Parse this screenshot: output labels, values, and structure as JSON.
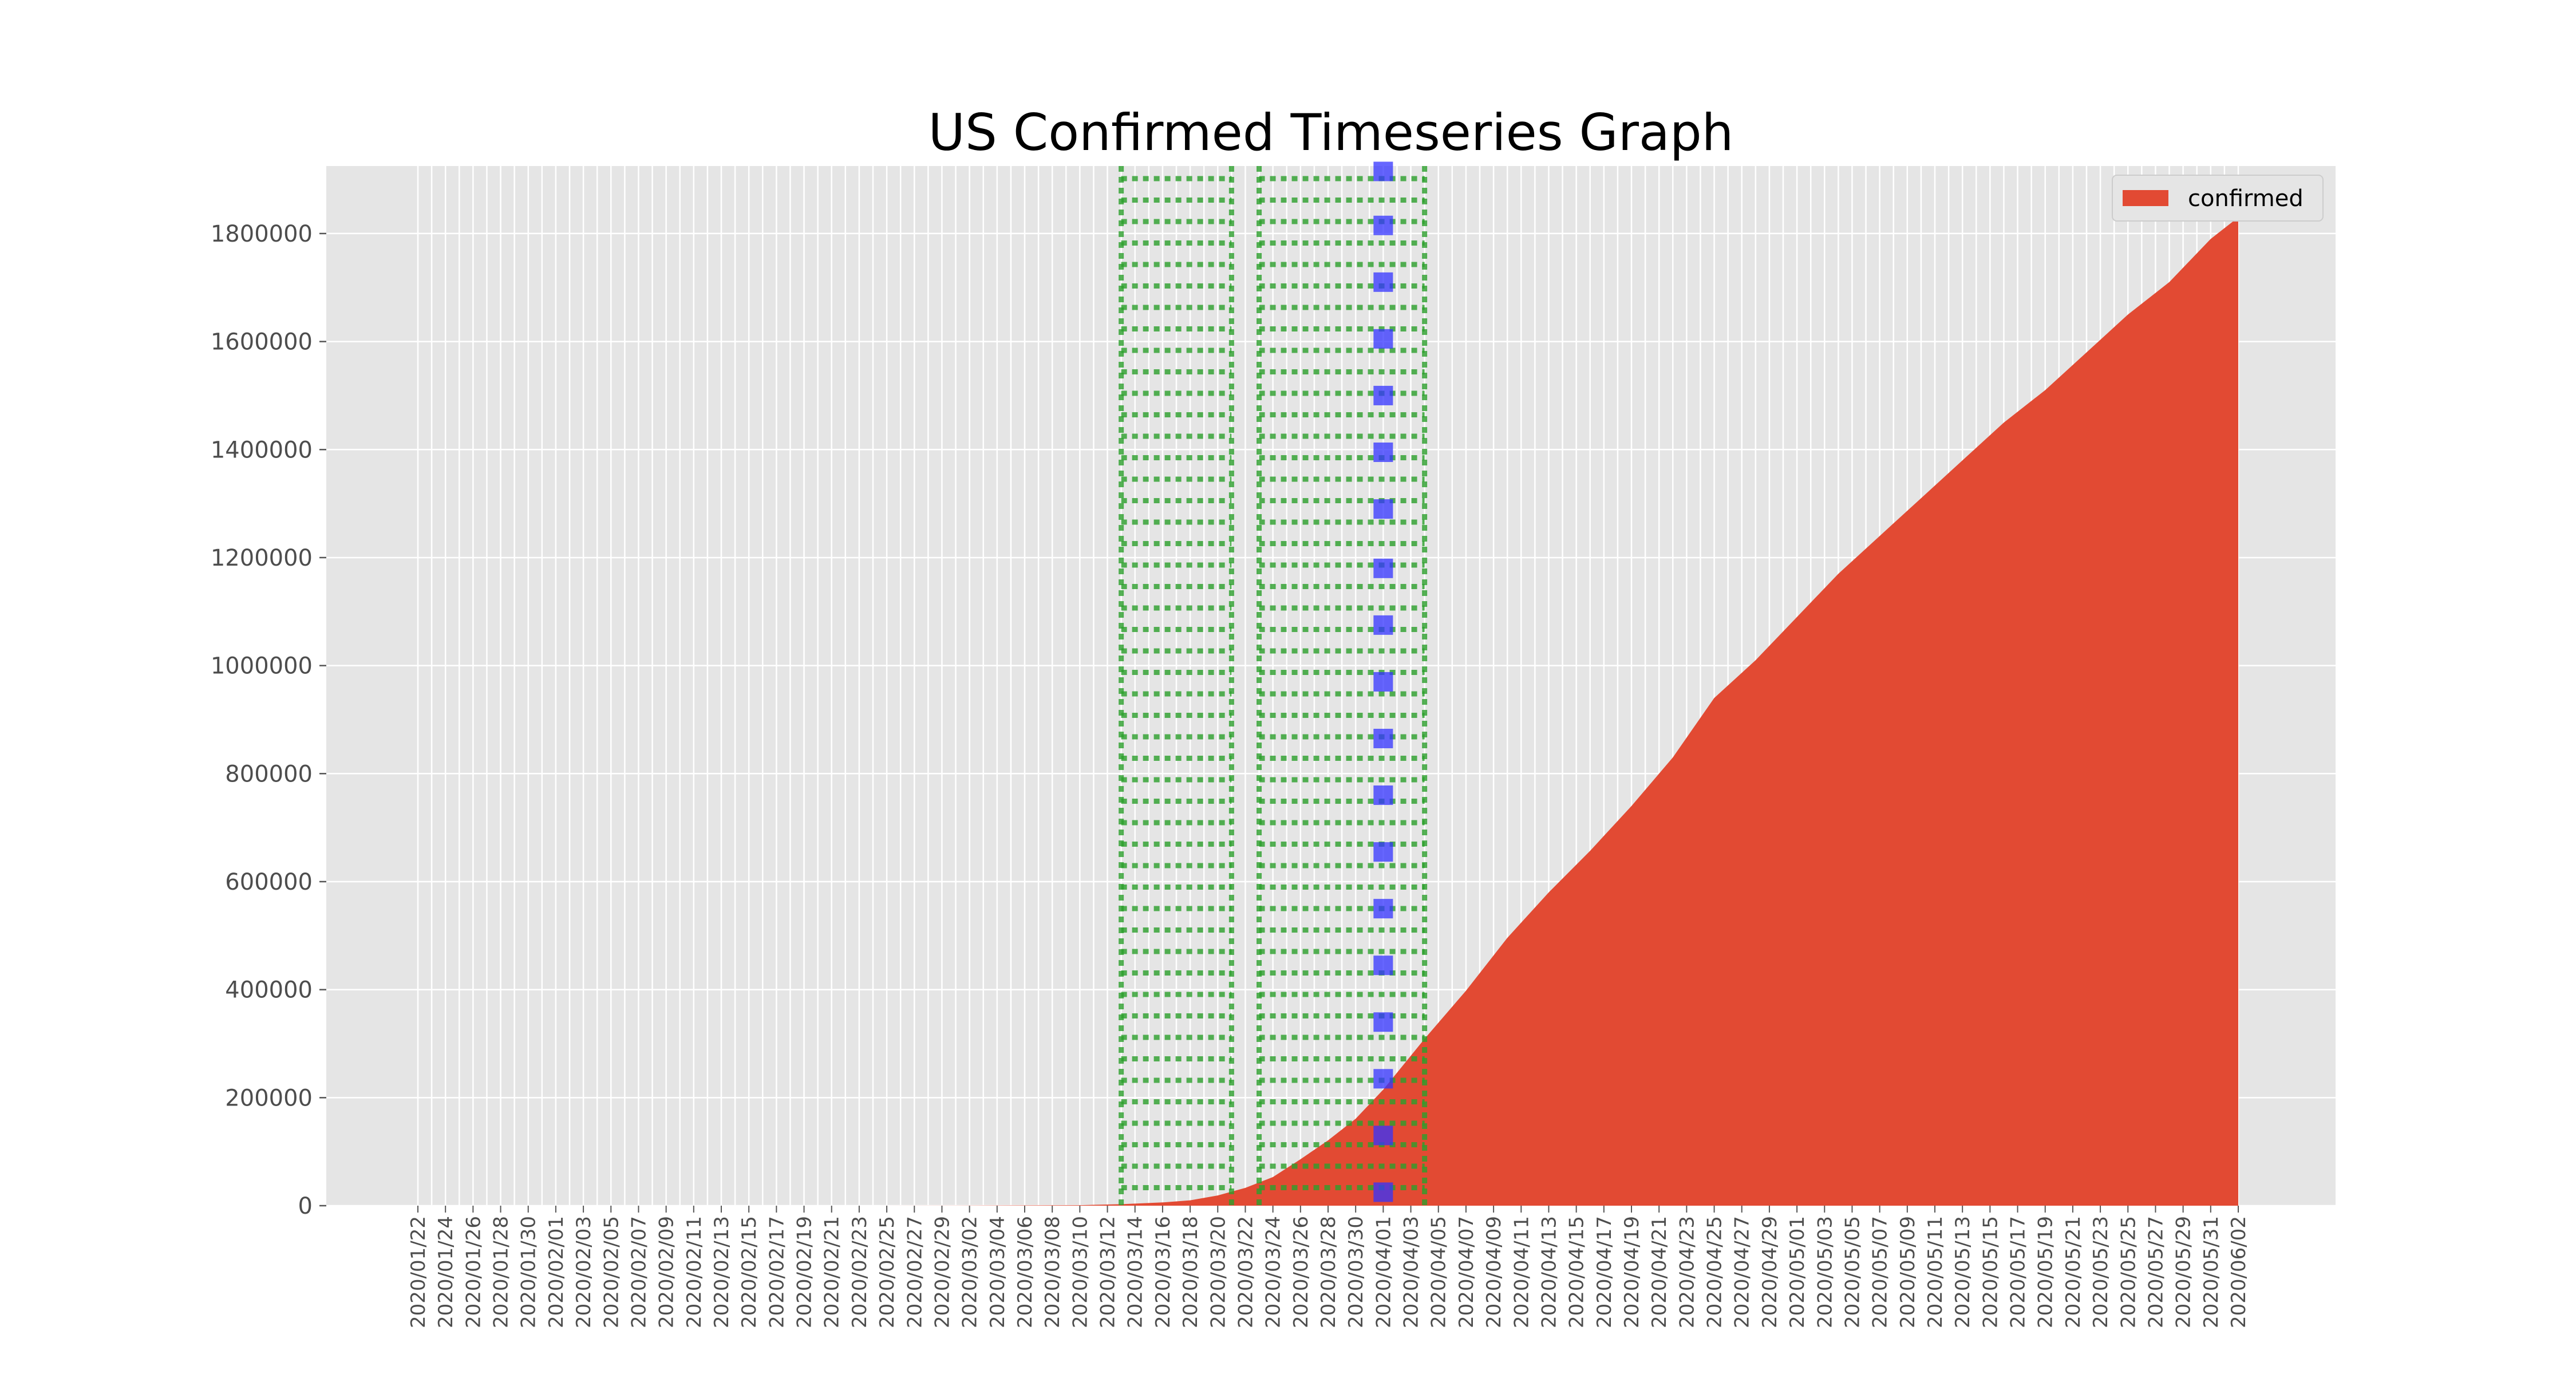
{
  "chart_data": {
    "type": "area",
    "title": "US Confirmed Timeseries Graph",
    "xlabel": "",
    "ylabel": "",
    "ylim": [
      0,
      1925000
    ],
    "yticks": [
      0,
      200000,
      400000,
      600000,
      800000,
      1000000,
      1200000,
      1400000,
      1600000,
      1800000
    ],
    "x_start": "2020/01/22",
    "x_end": "2020/06/02",
    "x_tick_format": "YYYY/MM/DD",
    "x_tick_every_days": 2,
    "grid": true,
    "legend_position": "top-right",
    "series": [
      {
        "name": "confirmed",
        "color": "#e24a33",
        "points": [
          [
            "2020/01/22",
            1
          ],
          [
            "2020/02/15",
            15
          ],
          [
            "2020/03/01",
            75
          ],
          [
            "2020/03/10",
            959
          ],
          [
            "2020/03/13",
            2727
          ],
          [
            "2020/03/16",
            6000
          ],
          [
            "2020/03/18",
            10000
          ],
          [
            "2020/03/20",
            19000
          ],
          [
            "2020/03/22",
            33000
          ],
          [
            "2020/03/24",
            53000
          ],
          [
            "2020/03/26",
            86000
          ],
          [
            "2020/03/28",
            121000
          ],
          [
            "2020/03/30",
            161000
          ],
          [
            "2020/04/01",
            215000
          ],
          [
            "2020/04/04",
            309000
          ],
          [
            "2020/04/07",
            398000
          ],
          [
            "2020/04/10",
            496000
          ],
          [
            "2020/04/13",
            580000
          ],
          [
            "2020/04/16",
            657000
          ],
          [
            "2020/04/19",
            740000
          ],
          [
            "2020/04/22",
            830000
          ],
          [
            "2020/04/25",
            940000
          ],
          [
            "2020/04/28",
            1010000
          ],
          [
            "2020/05/01",
            1090000
          ],
          [
            "2020/05/04",
            1170000
          ],
          [
            "2020/05/07",
            1240000
          ],
          [
            "2020/05/10",
            1310000
          ],
          [
            "2020/05/13",
            1380000
          ],
          [
            "2020/05/16",
            1450000
          ],
          [
            "2020/05/19",
            1510000
          ],
          [
            "2020/05/22",
            1580000
          ],
          [
            "2020/05/25",
            1650000
          ],
          [
            "2020/05/28",
            1710000
          ],
          [
            "2020/05/31",
            1790000
          ],
          [
            "2020/06/02",
            1830000
          ]
        ]
      }
    ],
    "highlight_bands": [
      {
        "start": "2020/03/13",
        "end": "2020/03/21",
        "color": "#2ca02c",
        "style": "dotted"
      },
      {
        "start": "2020/03/23",
        "end": "2020/04/04",
        "color": "#2ca02c",
        "style": "dotted"
      }
    ],
    "marker_line": {
      "date": "2020/04/01",
      "values": [
        25000,
        130000,
        235000,
        340000,
        445000,
        550000,
        655000,
        760000,
        865000,
        970000,
        1075000,
        1180000,
        1290000,
        1395000,
        1500000,
        1605000,
        1710000,
        1815000,
        1915000
      ],
      "color": "#3333ff",
      "marker": "square"
    }
  }
}
